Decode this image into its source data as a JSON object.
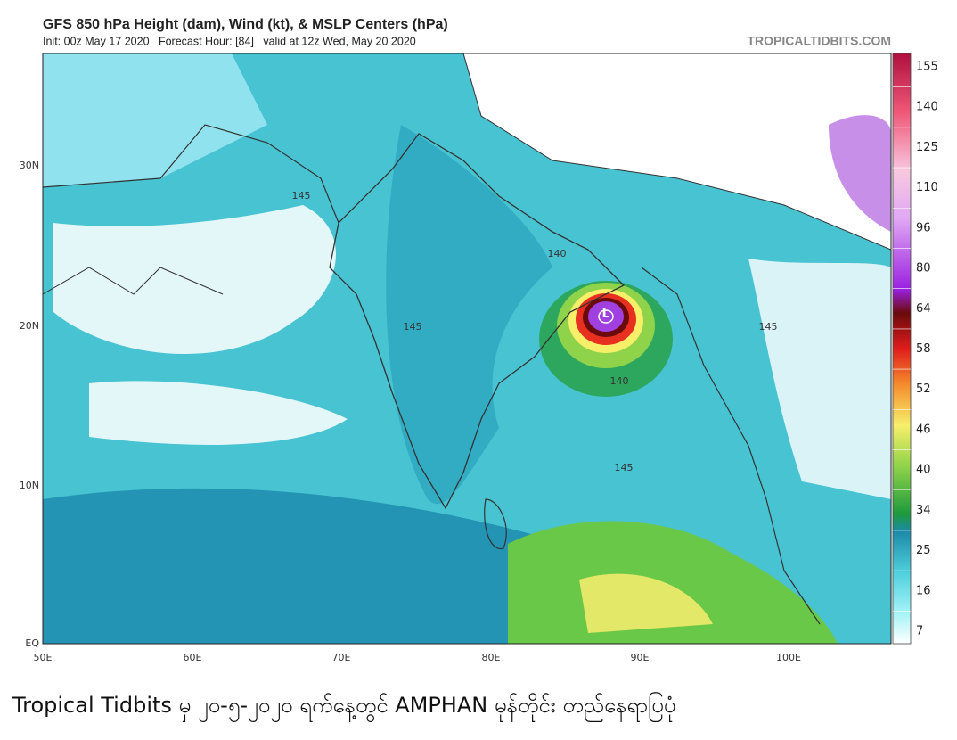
{
  "header": {
    "title": "GFS 850 hPa Height (dam), Wind (kt), & MSLP Centers (hPa)",
    "subtitle": "Init: 00z May 17 2020   Forecast Hour: [84]   valid at 12z Wed, May 20 2020",
    "source": "TROPICALTIDBITS.COM"
  },
  "map": {
    "lat_labels": [
      "30N",
      "20N",
      "10N",
      "EQ"
    ],
    "lon_labels": [
      "50E",
      "60E",
      "70E",
      "80E",
      "90E",
      "100E"
    ],
    "low_marker": "L",
    "contour_labels": [
      "145",
      "140",
      "145",
      "145",
      "145",
      "140"
    ]
  },
  "colorbar": {
    "labels": [
      155,
      140,
      125,
      110,
      96,
      80,
      64,
      58,
      52,
      46,
      40,
      34,
      25,
      16,
      7
    ]
  },
  "caption": "Tropical Tidbits မှ ၂၀-၅-၂၀၂၀ ရက်နေ့တွင် AMPHAN မုန်တိုင်း တည်နေရာပြပုံ"
}
